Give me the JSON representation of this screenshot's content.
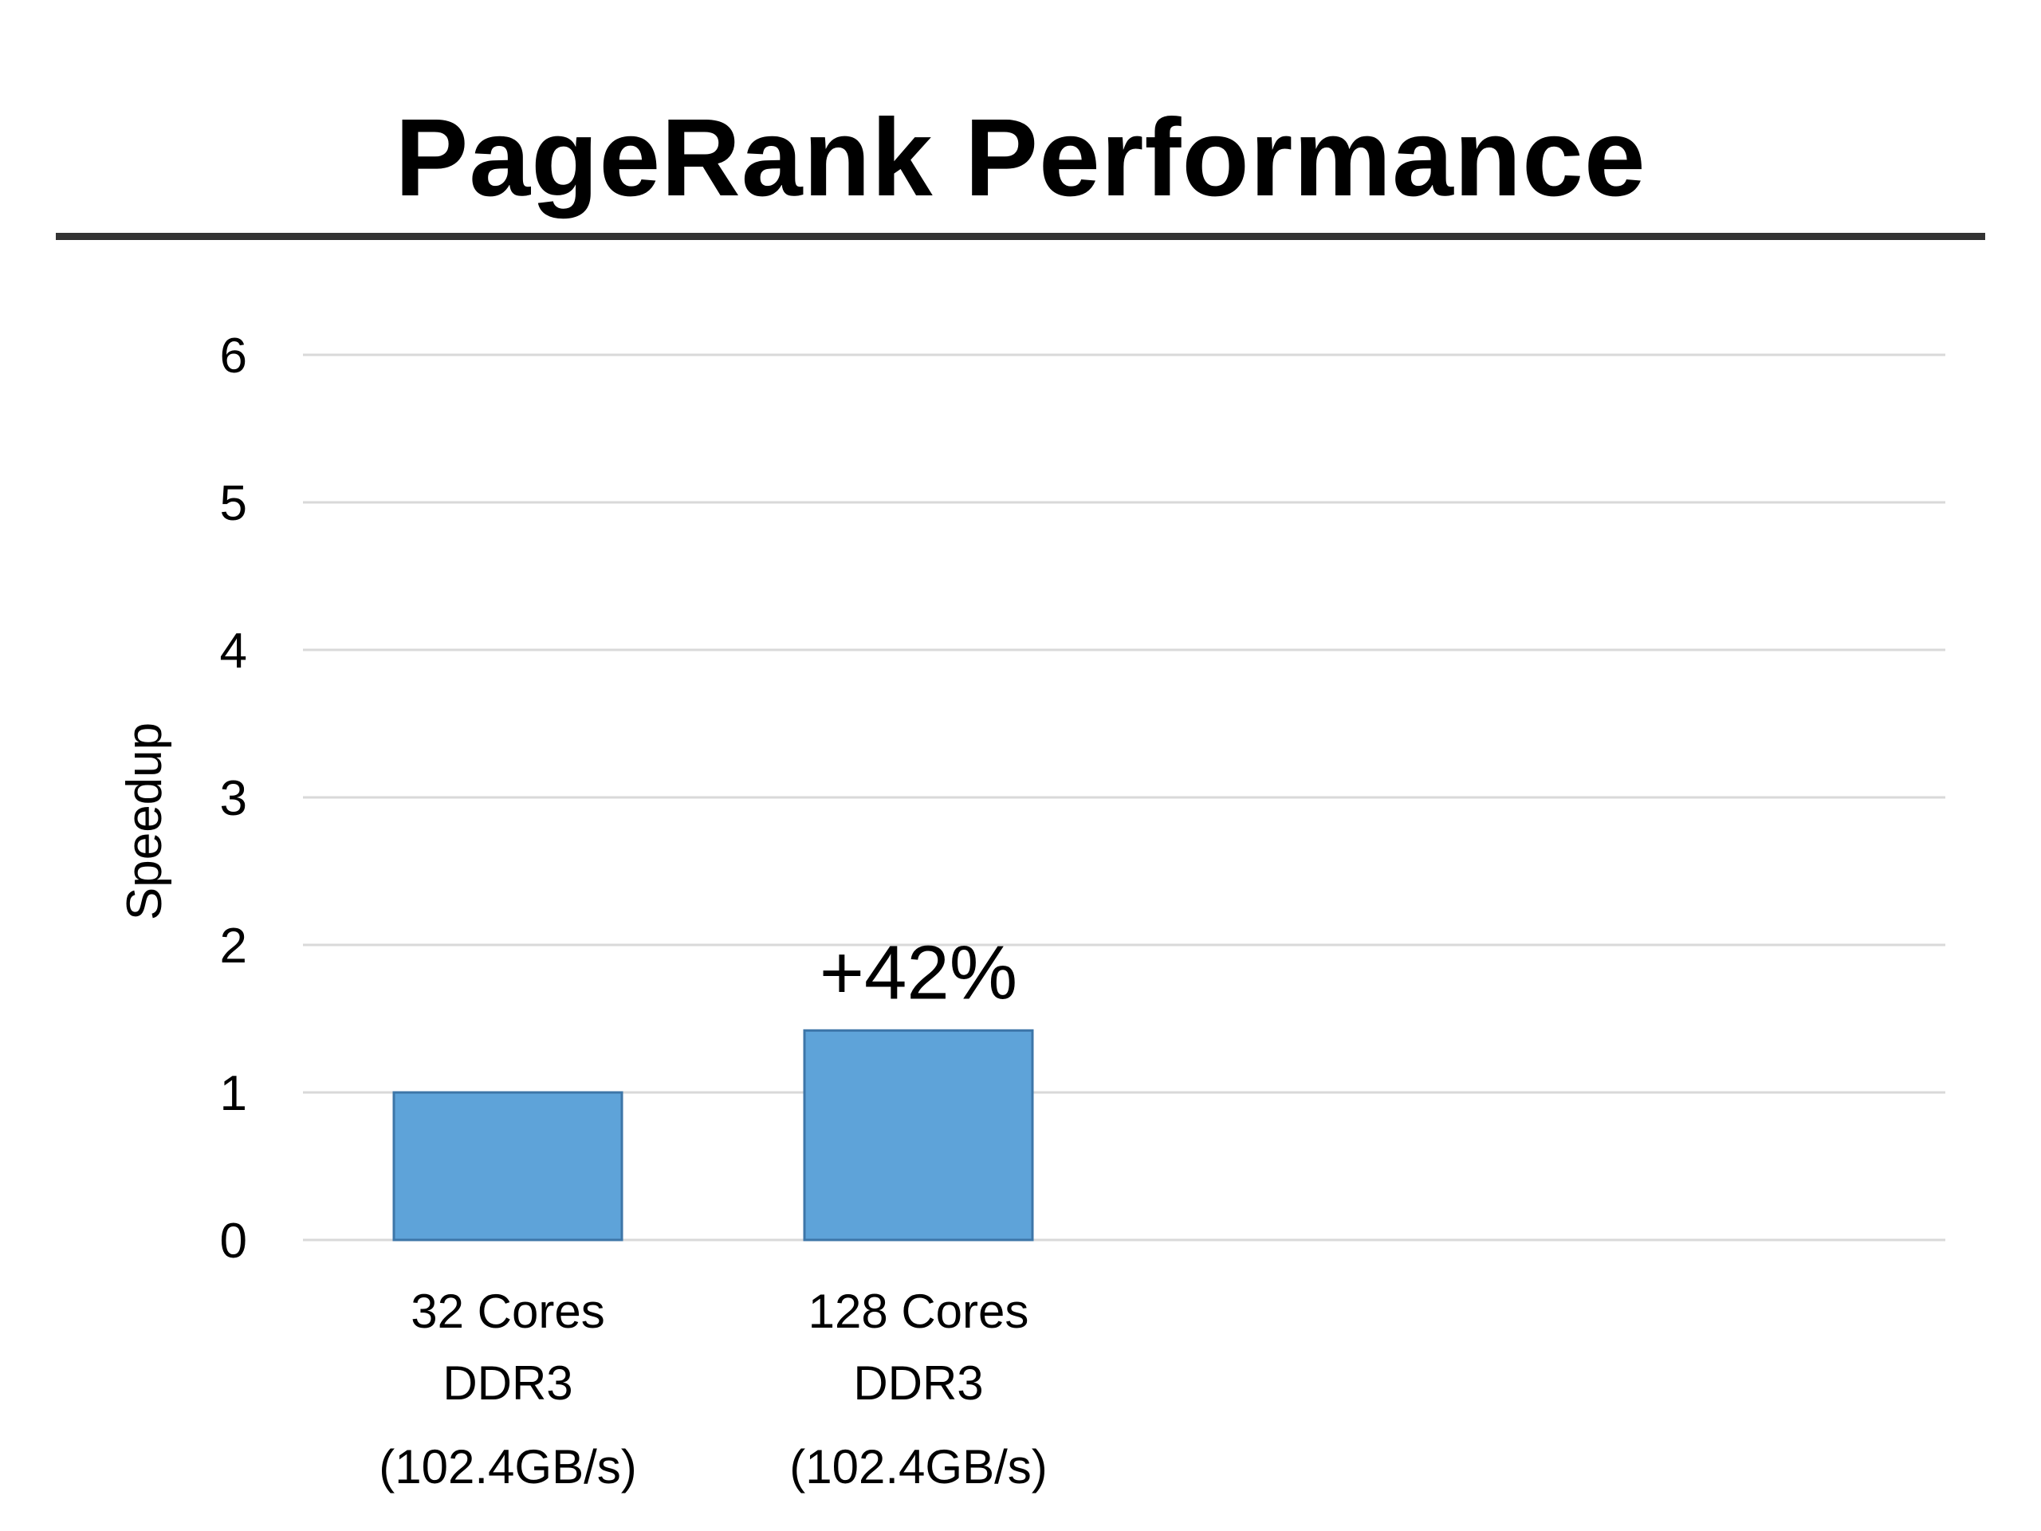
{
  "slide": {
    "title": "PageRank Performance"
  },
  "colors": {
    "bar_fill": "#5ea3d9",
    "bar_stroke": "#3d76a8",
    "gridline": "#d9d9d9",
    "title_rule": "#333333"
  },
  "chart_data": {
    "type": "bar",
    "title": "PageRank Performance",
    "ylabel": "Speedup",
    "xlabel": "",
    "ylim": [
      0,
      6
    ],
    "yticks": [
      0,
      1,
      2,
      3,
      4,
      5,
      6
    ],
    "grid": true,
    "legend": "none",
    "categories": [
      [
        "32 Cores",
        "DDR3",
        "(102.4GB/s)"
      ],
      [
        "128 Cores",
        "DDR3",
        "(102.4GB/s)"
      ]
    ],
    "values": [
      1.0,
      1.42
    ],
    "annotations": [
      {
        "category_index": 1,
        "text": "+42%"
      }
    ]
  }
}
